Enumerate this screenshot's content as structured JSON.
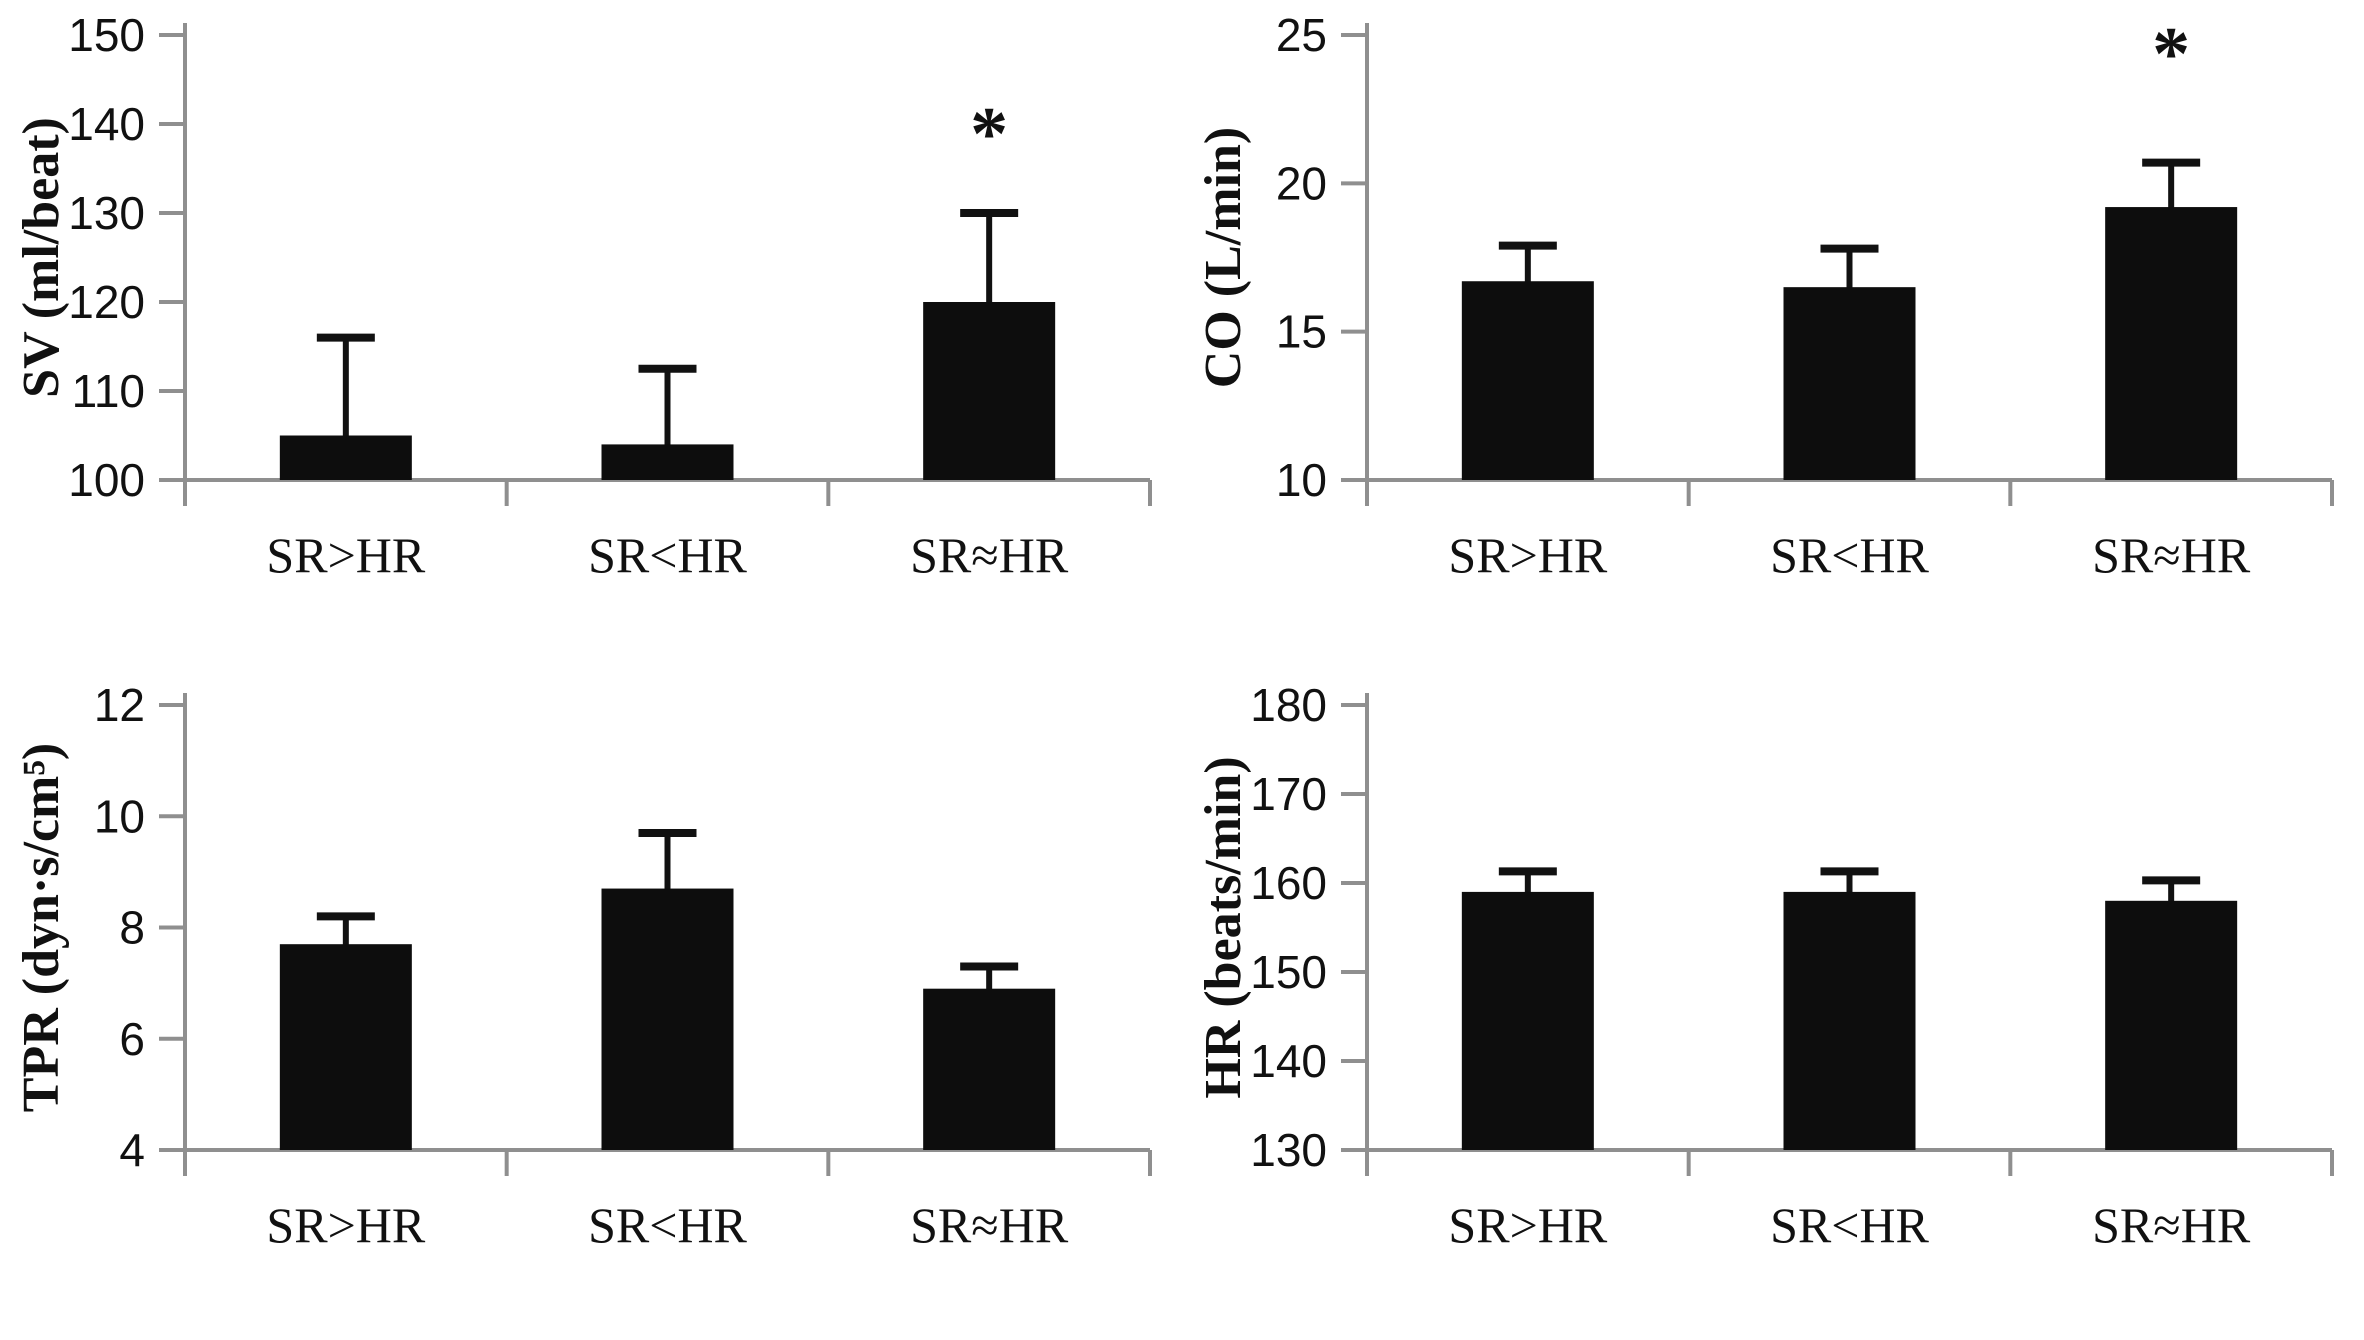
{
  "figure": {
    "description": "Four-panel bar chart figure of hemodynamic variables across stride-rate conditions",
    "layout": "2x2",
    "background": "#ffffff"
  },
  "styles": {
    "axis_color": "#8f8f8f",
    "bar_color": "#0d0d0d",
    "error_color": "#111111",
    "text_color": "#111111"
  },
  "chart_data": [
    {
      "id": "sv",
      "type": "bar",
      "ylabel": "SV (ml/beat)",
      "categories": [
        "SR>HR",
        "SR<HR",
        "SR≈HR"
      ],
      "values": [
        105,
        104,
        120
      ],
      "error_plus": [
        11,
        8.5,
        10
      ],
      "ylim": [
        100,
        150
      ],
      "yticks": [
        100,
        110,
        120,
        130,
        140,
        150
      ],
      "annotations": [
        {
          "category_index": 2,
          "text": "*",
          "y": 139
        }
      ]
    },
    {
      "id": "co",
      "type": "bar",
      "ylabel": "CO (L/min)",
      "categories": [
        "SR>HR",
        "SR<HR",
        "SR≈HR"
      ],
      "values": [
        16.7,
        16.5,
        19.2
      ],
      "error_plus": [
        1.2,
        1.3,
        1.5
      ],
      "ylim": [
        10,
        25
      ],
      "yticks": [
        10,
        15,
        20,
        25
      ],
      "annotations": [
        {
          "category_index": 2,
          "text": "*",
          "y": 24.4
        }
      ]
    },
    {
      "id": "tpr",
      "type": "bar",
      "ylabel": "TPR (dyn·s/cm⁵)",
      "categories": [
        "SR>HR",
        "SR<HR",
        "SR≈HR"
      ],
      "values": [
        7.7,
        8.7,
        6.9
      ],
      "error_plus": [
        0.5,
        1.0,
        0.4
      ],
      "ylim": [
        4,
        12
      ],
      "yticks": [
        4,
        6,
        8,
        10,
        12
      ],
      "annotations": []
    },
    {
      "id": "hr",
      "type": "bar",
      "ylabel": "HR (beats/min)",
      "categories": [
        "SR>HR",
        "SR<HR",
        "SR≈HR"
      ],
      "values": [
        159,
        159,
        158
      ],
      "error_plus": [
        2.3,
        2.3,
        2.3
      ],
      "ylim": [
        130,
        180
      ],
      "yticks": [
        130,
        140,
        150,
        160,
        170,
        180
      ],
      "annotations": []
    }
  ]
}
